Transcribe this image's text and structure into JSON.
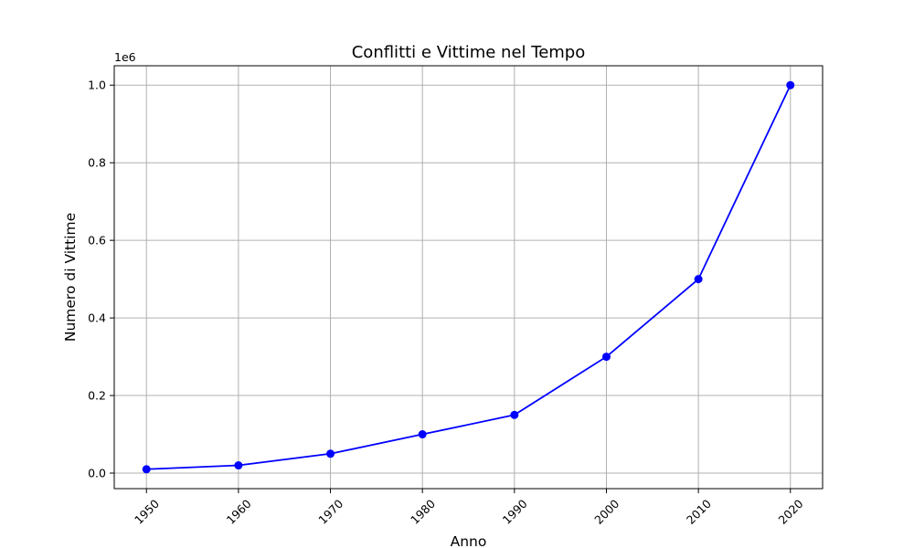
{
  "chart_data": {
    "type": "line",
    "title": "Conflitti e Vittime nel Tempo",
    "xlabel": "Anno",
    "ylabel": "Numero di Vittime",
    "y_offset_label": "1e6",
    "x": [
      1950,
      1960,
      1970,
      1980,
      1990,
      2000,
      2010,
      2020
    ],
    "x_tick_labels": [
      "1950",
      "1960",
      "1970",
      "1980",
      "1990",
      "2000",
      "2010",
      "2020"
    ],
    "y_ticks": [
      0,
      200000,
      400000,
      600000,
      800000,
      1000000
    ],
    "y_tick_labels": [
      "0.0",
      "0.2",
      "0.4",
      "0.6",
      "0.8",
      "1.0"
    ],
    "series": [
      {
        "values": [
          10000,
          20000,
          50000,
          100000,
          150000,
          300000,
          500000,
          1000000
        ],
        "color": "#0000ff",
        "marker": "circle"
      }
    ],
    "xlim": [
      1946.5,
      2023.5
    ],
    "ylim": [
      -40000,
      1050000
    ],
    "grid": true,
    "x_tick_rotation": 45
  }
}
